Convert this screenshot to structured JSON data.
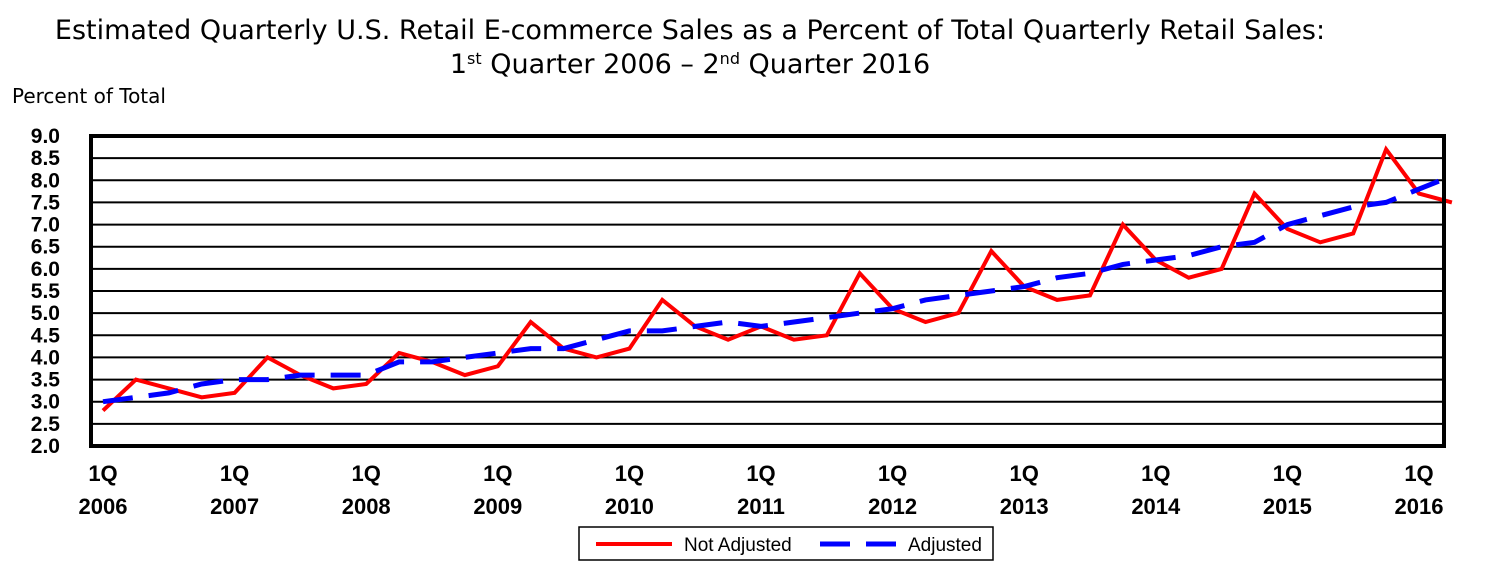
{
  "title": {
    "line1": "Estimated Quarterly U.S. Retail E-commerce Sales as a Percent of Total Quarterly Retail Sales:",
    "line2_a": "1",
    "line2_a_sup": "st",
    "line2_b": " Quarter 2006 – 2",
    "line2_b_sup": "nd",
    "line2_c": " Quarter 2016"
  },
  "y_unit_label": "Percent of Total",
  "chart_data": {
    "type": "line",
    "title": "Estimated Quarterly U.S. Retail E-commerce Sales as a Percent of Total Quarterly Retail Sales: 1st Quarter 2006 – 2nd Quarter 2016",
    "ylabel": "Percent of Total",
    "ylim": [
      2.0,
      9.0
    ],
    "yticks": [
      "9.0",
      "8.5",
      "8.0",
      "7.5",
      "7.0",
      "6.5",
      "6.0",
      "5.5",
      "5.0",
      "4.5",
      "4.0",
      "3.5",
      "3.0",
      "2.5",
      "2.0"
    ],
    "ytick_values": [
      9.0,
      8.5,
      8.0,
      7.5,
      7.0,
      6.5,
      6.0,
      5.5,
      5.0,
      4.5,
      4.0,
      3.5,
      3.0,
      2.5,
      2.0
    ],
    "grid": "horizontal",
    "x": [
      "2006Q1",
      "2006Q2",
      "2006Q3",
      "2006Q4",
      "2007Q1",
      "2007Q2",
      "2007Q3",
      "2007Q4",
      "2008Q1",
      "2008Q2",
      "2008Q3",
      "2008Q4",
      "2009Q1",
      "2009Q2",
      "2009Q3",
      "2009Q4",
      "2010Q1",
      "2010Q2",
      "2010Q3",
      "2010Q4",
      "2011Q1",
      "2011Q2",
      "2011Q3",
      "2011Q4",
      "2012Q1",
      "2012Q2",
      "2012Q3",
      "2012Q4",
      "2013Q1",
      "2013Q2",
      "2013Q3",
      "2013Q4",
      "2014Q1",
      "2014Q2",
      "2014Q3",
      "2014Q4",
      "2015Q1",
      "2015Q2",
      "2015Q3",
      "2015Q4",
      "2016Q1",
      "2016Q2"
    ],
    "xtick_labels": [
      {
        "top": "1Q",
        "bottom": "2006"
      },
      {
        "top": "1Q",
        "bottom": "2007"
      },
      {
        "top": "1Q",
        "bottom": "2008"
      },
      {
        "top": "1Q",
        "bottom": "2009"
      },
      {
        "top": "1Q",
        "bottom": "2010"
      },
      {
        "top": "1Q",
        "bottom": "2011"
      },
      {
        "top": "1Q",
        "bottom": "2012"
      },
      {
        "top": "1Q",
        "bottom": "2013"
      },
      {
        "top": "1Q",
        "bottom": "2014"
      },
      {
        "top": "1Q",
        "bottom": "2015"
      },
      {
        "top": "1Q",
        "bottom": "2016"
      }
    ],
    "series": [
      {
        "name": "Not Adjusted",
        "color": "#ff0000",
        "style": "solid",
        "values": [
          2.8,
          3.5,
          3.3,
          3.1,
          3.2,
          4.0,
          3.6,
          3.3,
          3.4,
          4.1,
          3.9,
          3.6,
          3.8,
          4.8,
          4.2,
          4.0,
          4.2,
          5.3,
          4.7,
          4.4,
          4.7,
          4.4,
          4.5,
          5.9,
          5.1,
          4.8,
          5.0,
          6.4,
          5.6,
          5.3,
          5.4,
          7.0,
          6.2,
          5.8,
          6.0,
          7.7,
          6.9,
          6.6,
          6.8,
          8.7,
          7.7,
          7.5
        ]
      },
      {
        "name": "Adjusted",
        "color": "#0000ff",
        "style": "dashed",
        "values": [
          3.0,
          3.1,
          3.2,
          3.4,
          3.5,
          3.5,
          3.6,
          3.6,
          3.6,
          3.9,
          3.9,
          4.0,
          4.1,
          4.2,
          4.2,
          4.4,
          4.6,
          4.6,
          4.7,
          4.8,
          4.7,
          4.8,
          4.9,
          5.0,
          5.1,
          5.3,
          5.4,
          5.5,
          5.6,
          5.8,
          5.9,
          6.1,
          6.2,
          6.3,
          6.5,
          6.6,
          7.0,
          7.2,
          7.4,
          7.5,
          7.8,
          8.1
        ]
      }
    ],
    "legend": {
      "position": "bottom-center",
      "entries": [
        "Not Adjusted",
        "Adjusted"
      ]
    }
  }
}
